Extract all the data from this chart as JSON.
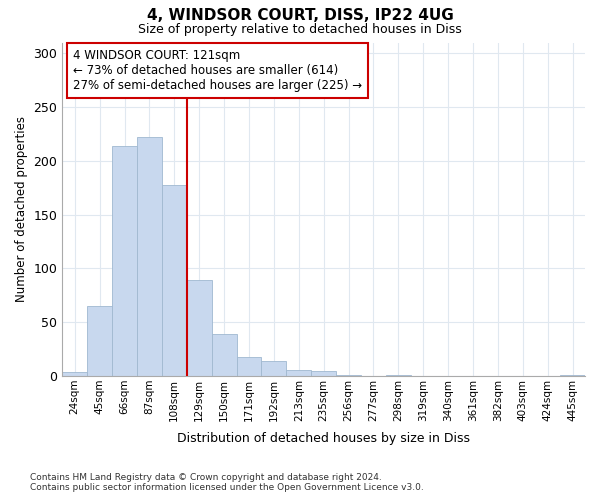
{
  "title1": "4, WINDSOR COURT, DISS, IP22 4UG",
  "title2": "Size of property relative to detached houses in Diss",
  "xlabel": "Distribution of detached houses by size in Diss",
  "ylabel": "Number of detached properties",
  "categories": [
    "24sqm",
    "45sqm",
    "66sqm",
    "87sqm",
    "108sqm",
    "129sqm",
    "150sqm",
    "171sqm",
    "192sqm",
    "213sqm",
    "235sqm",
    "256sqm",
    "277sqm",
    "298sqm",
    "319sqm",
    "340sqm",
    "361sqm",
    "382sqm",
    "403sqm",
    "424sqm",
    "445sqm"
  ],
  "values": [
    4,
    65,
    214,
    222,
    178,
    89,
    39,
    18,
    14,
    6,
    5,
    1,
    0,
    1,
    0,
    0,
    0,
    0,
    0,
    0,
    1
  ],
  "bar_color": "#c8d8ee",
  "bar_edge_color": "#a0b8d0",
  "vline_color": "#cc0000",
  "vline_pos": 5,
  "annotation_text": "4 WINDSOR COURT: 121sqm\n← 73% of detached houses are smaller (614)\n27% of semi-detached houses are larger (225) →",
  "annotation_box_color": "#ffffff",
  "annotation_box_edge_color": "#cc0000",
  "ylim": [
    0,
    310
  ],
  "yticks": [
    0,
    50,
    100,
    150,
    200,
    250,
    300
  ],
  "footer1": "Contains HM Land Registry data © Crown copyright and database right 2024.",
  "footer2": "Contains public sector information licensed under the Open Government Licence v3.0.",
  "background_color": "#ffffff",
  "grid_color": "#e0e8f0"
}
